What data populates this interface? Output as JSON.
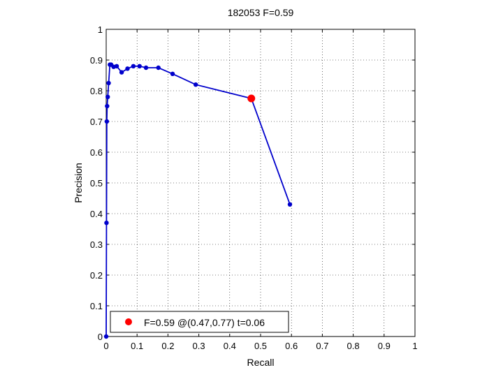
{
  "chart_data": {
    "type": "line",
    "title": "182053 F=0.59",
    "xlabel": "Recall",
    "ylabel": "Precision",
    "xlim": [
      0,
      1
    ],
    "ylim": [
      0,
      1
    ],
    "xticks": [
      "0",
      "0.1",
      "0.2",
      "0.3",
      "0.4",
      "0.5",
      "0.6",
      "0.7",
      "0.8",
      "0.9",
      "1"
    ],
    "yticks": [
      "0",
      "0.1",
      "0.2",
      "0.3",
      "0.4",
      "0.5",
      "0.6",
      "0.7",
      "0.8",
      "0.9",
      "1"
    ],
    "grid": true,
    "series": [
      {
        "color": "#0000cc",
        "x": [
          0.0,
          0.001,
          0.002,
          0.003,
          0.005,
          0.008,
          0.012,
          0.016,
          0.024,
          0.034,
          0.05,
          0.069,
          0.088,
          0.108,
          0.129,
          0.169,
          0.215,
          0.29,
          0.47,
          0.595
        ],
        "y": [
          0.0,
          0.37,
          0.7,
          0.75,
          0.78,
          0.825,
          0.885,
          0.885,
          0.878,
          0.88,
          0.86,
          0.872,
          0.88,
          0.88,
          0.875,
          0.875,
          0.855,
          0.82,
          0.775,
          0.43
        ]
      }
    ],
    "highlight": {
      "x": 0.47,
      "y": 0.775,
      "color": "#ff0000"
    },
    "legend": {
      "label": "F=0.59 @(0.47,0.77) t=0.06",
      "position": "bottom-left"
    }
  }
}
